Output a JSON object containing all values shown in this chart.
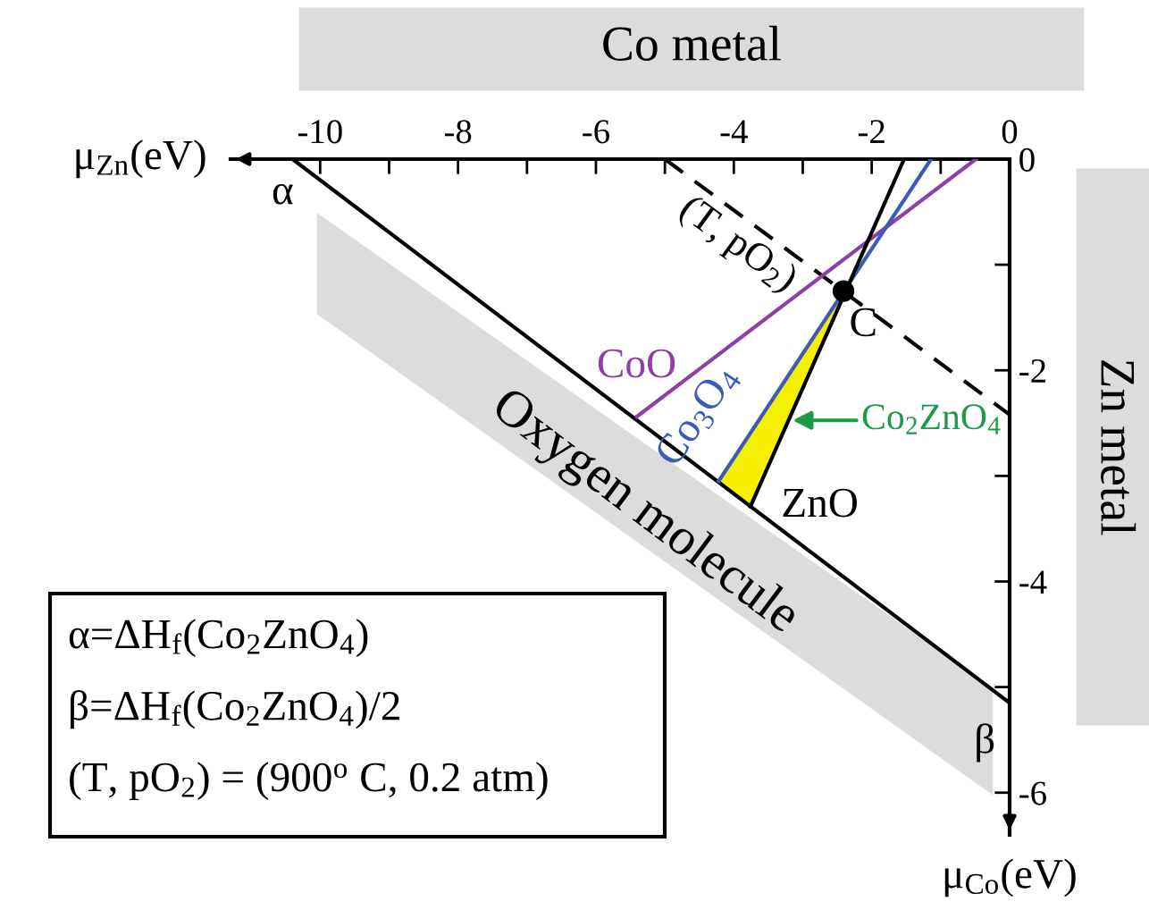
{
  "chart_data": {
    "type": "line",
    "xlabel": "μ$_{Zn}$(eV)",
    "ylabel": "μ$_{Co}$(eV)",
    "xlim": [
      -11.3,
      0
    ],
    "ylim": [
      -6.4,
      0
    ],
    "xticks": [
      0,
      {
        "value": -1,
        "label": null
      },
      -2,
      {
        "value": -3,
        "label": null
      },
      -4,
      {
        "value": -5,
        "label": null
      },
      -6,
      {
        "value": -7,
        "label": null
      },
      -8,
      {
        "value": -9,
        "label": null
      },
      -10
    ],
    "yticks": [
      0,
      {
        "value": -1,
        "label": null
      },
      -2,
      {
        "value": -3,
        "label": null
      },
      -4,
      {
        "value": -5,
        "label": null
      },
      -6
    ],
    "grid": false,
    "legend": false,
    "marker": "none",
    "series": [
      {
        "type": "area",
        "name": "Co$_{2}$ZnO$_{4}$",
        "color": "#f5f000",
        "x": [
          -2.41,
          -4.22,
          -3.76
        ],
        "values": [
          -1.25,
          -3.05,
          -3.29
        ]
      },
      {
        "color": "#000000",
        "x": [
          -10.4,
          0
        ],
        "values": [
          0,
          -5.15
        ]
      },
      {
        "color": "#000000",
        "line_style": "dashed",
        "x": [
          -5.0,
          0
        ],
        "values": [
          0,
          -2.42
        ]
      },
      {
        "name": "CoO",
        "color": "#8e3fa8",
        "x": [
          -0.49,
          -5.41
        ],
        "values": [
          0,
          -2.44
        ]
      },
      {
        "name": "Co$_{3}$O$_{4}$",
        "color": "#3a5bb8",
        "x": [
          -1.14,
          -4.22
        ],
        "values": [
          0,
          -3.05
        ]
      },
      {
        "name": "ZnO",
        "color": "#000000",
        "x": [
          -1.53,
          -3.76
        ],
        "values": [
          0,
          -3.29
        ]
      },
      {
        "type": "scatter",
        "color": "#000000",
        "marker": "circle",
        "x": [
          -2.41
        ],
        "values": [
          -1.25
        ]
      }
    ],
    "annotations": [
      "Co metal",
      "Zn metal",
      {
        "text": "α",
        "x": -10.4,
        "y": 0
      },
      {
        "text": "β",
        "x": 0,
        "y": -5.15
      },
      {
        "text": "C",
        "x": -2.41,
        "y": -1.25
      },
      "(T, pO$_{2}$)",
      "Oxygen molecule",
      "α=ΔH$_{f}$(Co$_{2}$ZnO$_{4}$)",
      "β=ΔH$_{f}$(Co$_{2}$ZnO$_{4}$)/2",
      "(T, pO$_{2}$) = (900$^{o}$ C, 0.2 atm)"
    ]
  }
}
